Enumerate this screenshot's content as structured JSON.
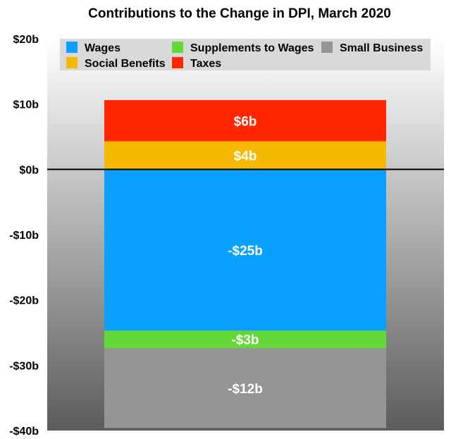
{
  "chart_data": {
    "type": "bar",
    "title": "Contributions to the Change in DPI, March 2020",
    "xlabel": "",
    "ylabel": "",
    "ylim": [
      -40,
      20
    ],
    "yticks": [
      20,
      10,
      0,
      -10,
      -20,
      -30,
      -40
    ],
    "ytick_labels": [
      "$20b",
      "$10b",
      "$0b",
      "-$10b",
      "-$20b",
      "-$30b",
      "-$40b"
    ],
    "stacked": true,
    "categories": [
      "March 2020"
    ],
    "show_category_labels": false,
    "legend_position": "top",
    "series": [
      {
        "name": "Wages",
        "values": [
          -24.7
        ],
        "label": "-$25b",
        "color": "#0aa0ff"
      },
      {
        "name": "Supplements to Wages",
        "values": [
          -2.7
        ],
        "label": "-$3b",
        "color": "#62d938"
      },
      {
        "name": "Small Business",
        "values": [
          -12.2
        ],
        "label": "-$12b",
        "color": "#959595"
      },
      {
        "name": "Social Benefits",
        "values": [
          4.3
        ],
        "label": "$4b",
        "color": "#f7b900"
      },
      {
        "name": "Taxes",
        "values": [
          6.3
        ],
        "label": "$6b",
        "color": "#ff2600"
      }
    ],
    "colors": {
      "background_top": "#ffffff",
      "background_bottom": "#5c5c5c",
      "zero_line": "#000000",
      "legend_background": "#d9d9d9"
    }
  }
}
